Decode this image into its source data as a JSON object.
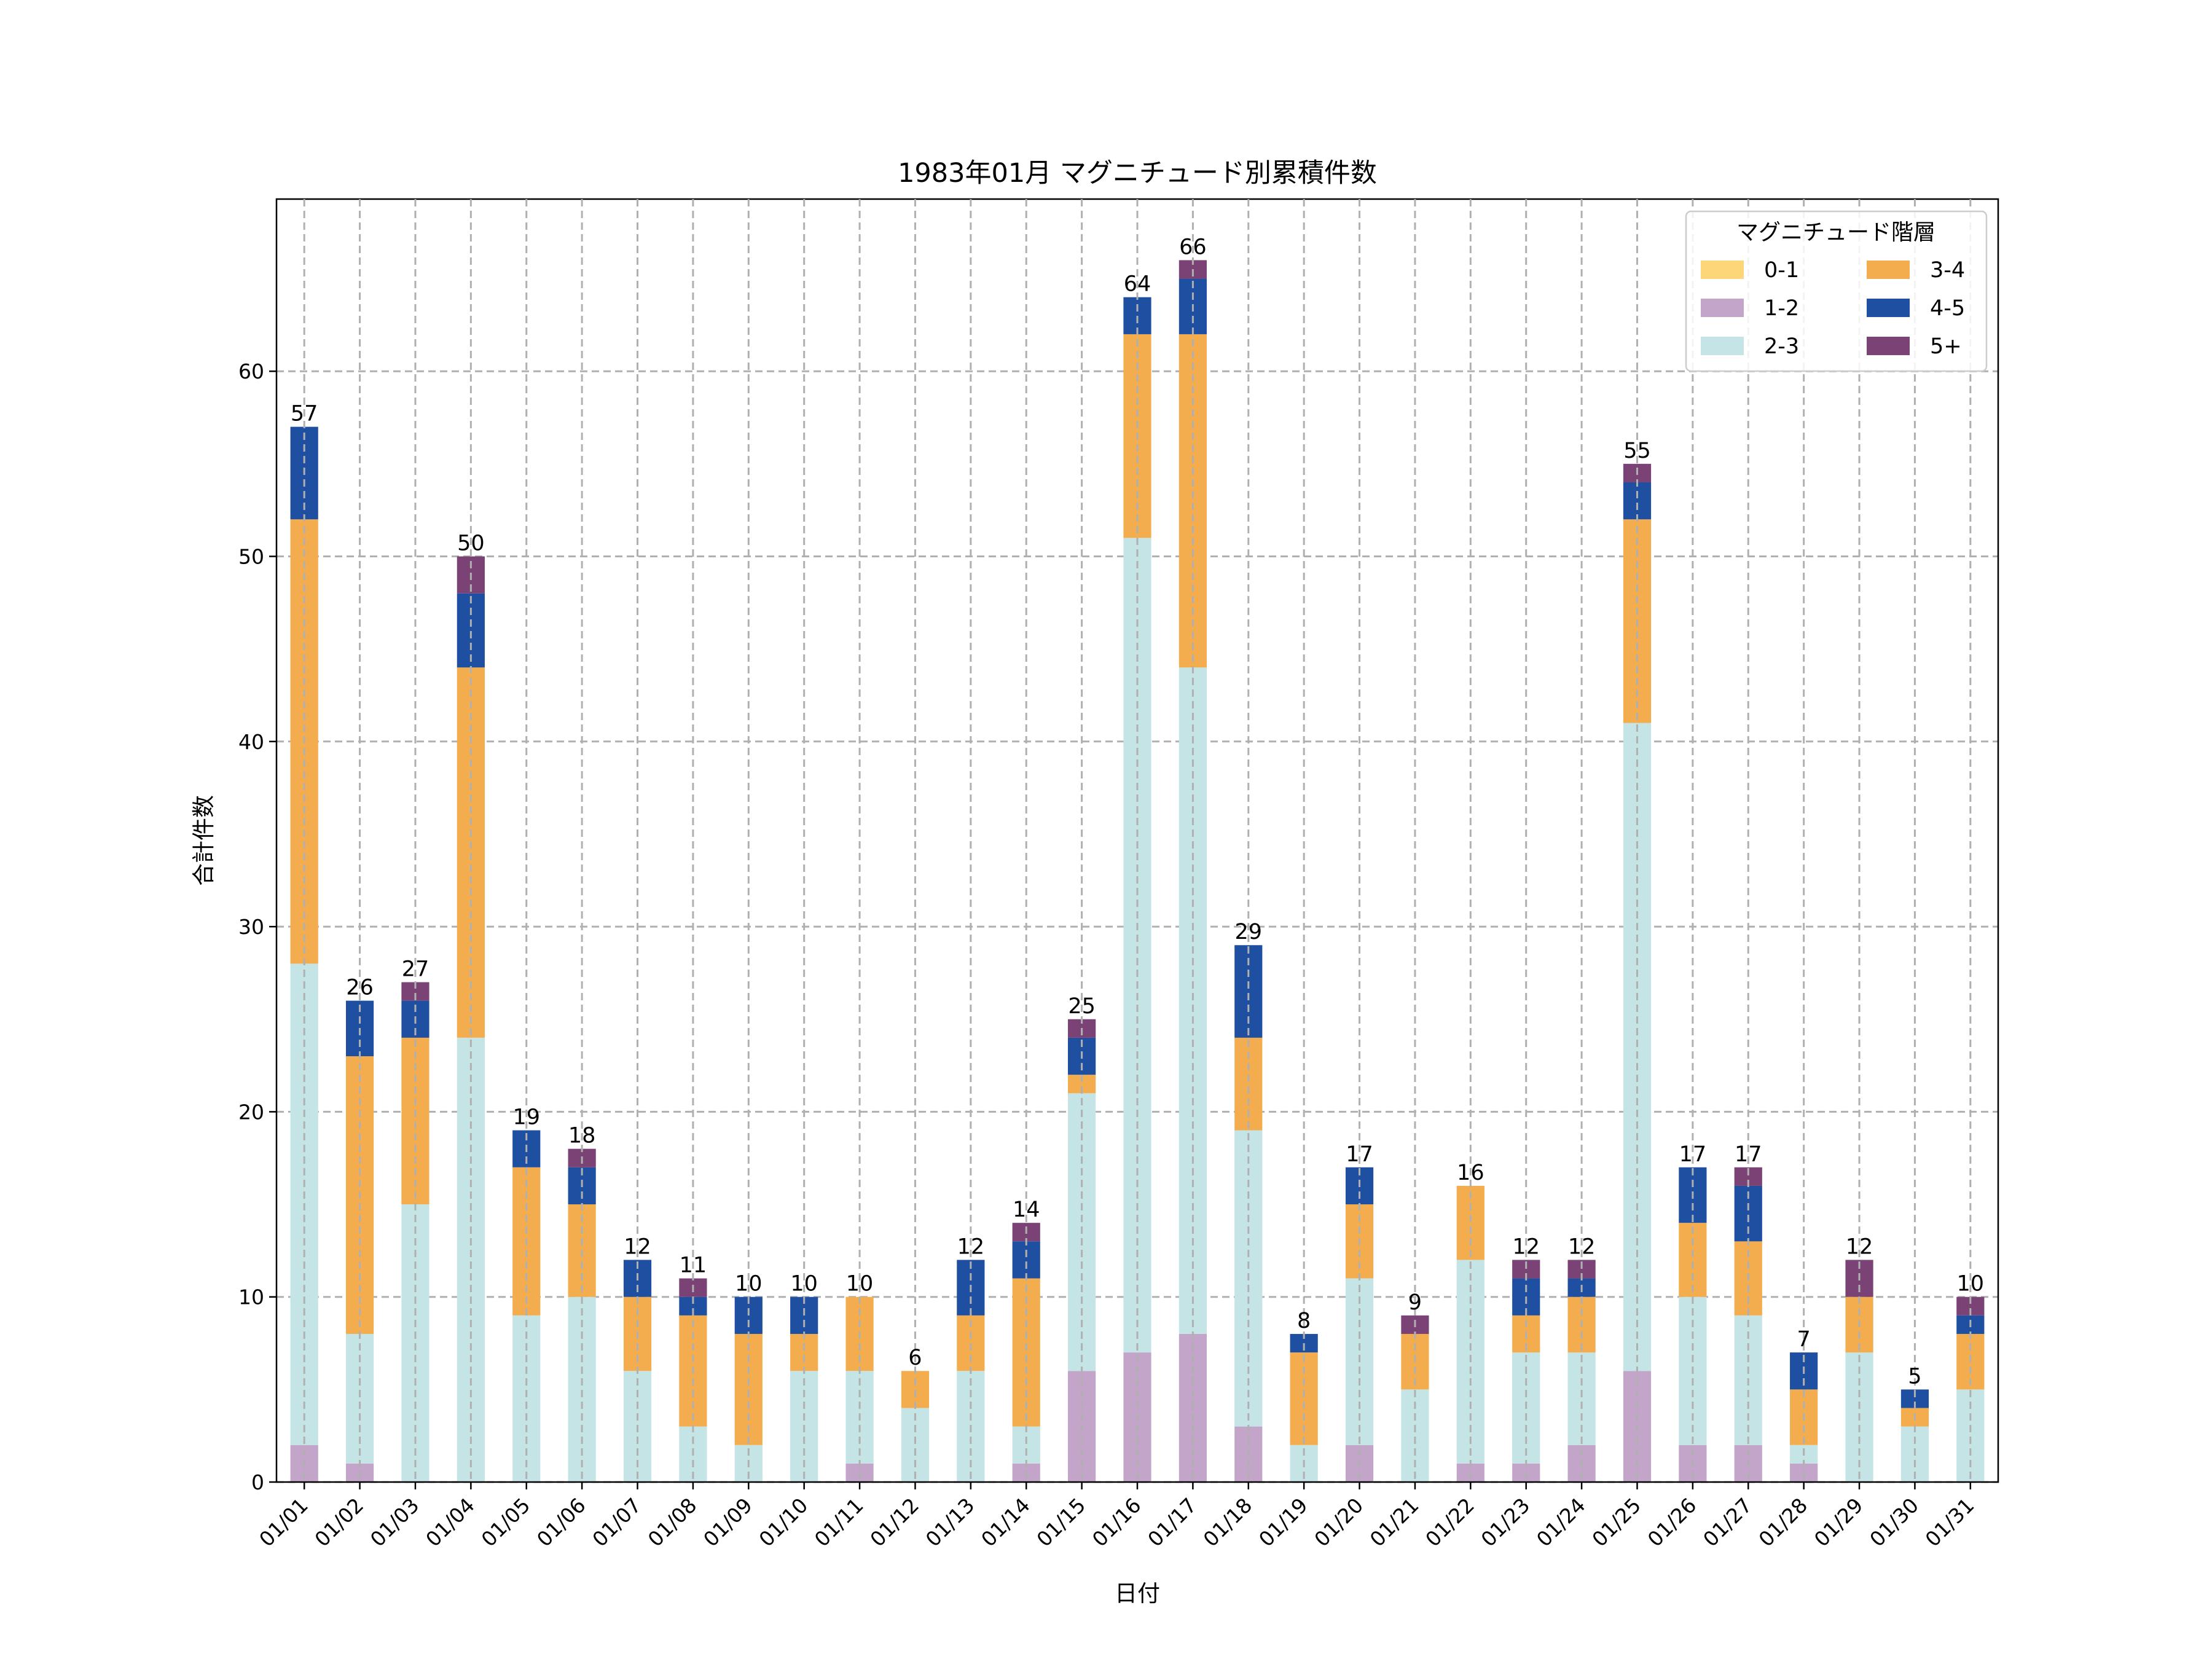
{
  "chart_data": {
    "type": "bar",
    "stacked": true,
    "title": "1983年01月 マグニチュード別累積件数",
    "xlabel": "日付",
    "ylabel": "合計件数",
    "ylim": [
      0,
      69.3
    ],
    "yticks": [
      0,
      10,
      20,
      30,
      40,
      50,
      60
    ],
    "grid": true,
    "legend": {
      "title": "マグニチュード階層",
      "placement": "top-right",
      "columns": 2
    },
    "categories": [
      "01/01",
      "01/02",
      "01/03",
      "01/04",
      "01/05",
      "01/06",
      "01/07",
      "01/08",
      "01/09",
      "01/10",
      "01/11",
      "01/12",
      "01/13",
      "01/14",
      "01/15",
      "01/16",
      "01/17",
      "01/18",
      "01/19",
      "01/20",
      "01/21",
      "01/22",
      "01/23",
      "01/24",
      "01/25",
      "01/26",
      "01/27",
      "01/28",
      "01/29",
      "01/30",
      "01/31"
    ],
    "series": [
      {
        "name": "0-1",
        "color": "#fcd679",
        "values": [
          0,
          0,
          0,
          0,
          0,
          0,
          0,
          0,
          0,
          0,
          0,
          0,
          0,
          0,
          0,
          0,
          0,
          0,
          0,
          0,
          0,
          0,
          0,
          0,
          0,
          0,
          0,
          0,
          0,
          0,
          0
        ]
      },
      {
        "name": "1-2",
        "color": "#c2a5c9",
        "values": [
          2,
          1,
          0,
          0,
          0,
          0,
          0,
          0,
          0,
          0,
          1,
          0,
          0,
          1,
          6,
          7,
          8,
          3,
          0,
          2,
          0,
          1,
          1,
          2,
          6,
          2,
          2,
          1,
          0,
          0,
          0
        ]
      },
      {
        "name": "2-3",
        "color": "#c4e4e6",
        "values": [
          26,
          7,
          15,
          24,
          9,
          10,
          6,
          3,
          2,
          6,
          5,
          4,
          6,
          2,
          15,
          44,
          36,
          16,
          2,
          9,
          5,
          11,
          6,
          5,
          35,
          8,
          7,
          1,
          7,
          3,
          5
        ]
      },
      {
        "name": "3-4",
        "color": "#f4ad4e",
        "values": [
          24,
          15,
          9,
          20,
          8,
          5,
          4,
          6,
          6,
          2,
          4,
          2,
          3,
          8,
          1,
          11,
          18,
          5,
          5,
          4,
          3,
          4,
          2,
          3,
          11,
          4,
          4,
          3,
          3,
          1,
          3
        ]
      },
      {
        "name": "4-5",
        "color": "#1f4fa0",
        "values": [
          5,
          3,
          2,
          4,
          2,
          2,
          2,
          1,
          2,
          2,
          0,
          0,
          3,
          2,
          2,
          2,
          3,
          5,
          1,
          2,
          0,
          0,
          2,
          1,
          2,
          3,
          3,
          2,
          0,
          1,
          1
        ]
      },
      {
        "name": "5+",
        "color": "#7b4276",
        "values": [
          0,
          0,
          1,
          2,
          0,
          1,
          0,
          1,
          0,
          0,
          0,
          0,
          0,
          1,
          1,
          0,
          1,
          0,
          0,
          0,
          1,
          0,
          1,
          1,
          1,
          0,
          1,
          0,
          2,
          0,
          1
        ]
      }
    ],
    "totals": [
      57,
      26,
      27,
      50,
      19,
      18,
      12,
      11,
      10,
      10,
      10,
      6,
      12,
      14,
      25,
      64,
      66,
      29,
      8,
      17,
      9,
      16,
      12,
      12,
      55,
      17,
      17,
      7,
      12,
      5,
      10
    ]
  }
}
